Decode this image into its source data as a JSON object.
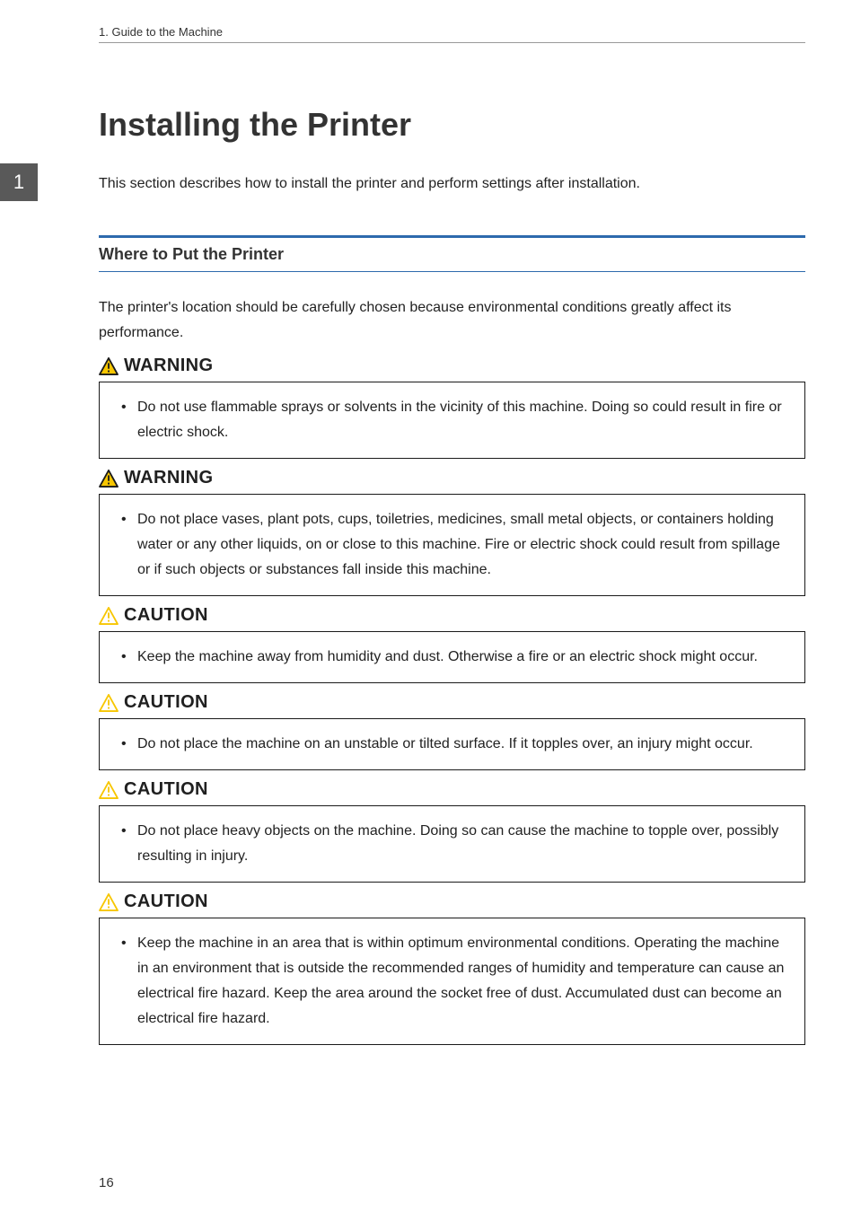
{
  "runningHeader": "1. Guide to the Machine",
  "sideTab": "1",
  "pageTitle": "Installing the Printer",
  "introText": "This section describes how to install the printer and perform settings after installation.",
  "sectionHeading": "Where to Put the Printer",
  "sectionText": "The printer's location should be carefully chosen because environmental conditions greatly affect its performance.",
  "alerts": [
    {
      "level": "WARNING",
      "levelColor": "#202020",
      "iconStroke": "#1a1a1a",
      "iconFill": "#f7c600",
      "text": "Do not use flammable sprays or solvents in the vicinity of this machine. Doing so could result in fire or electric shock."
    },
    {
      "level": "WARNING",
      "levelColor": "#202020",
      "iconStroke": "#1a1a1a",
      "iconFill": "#f7c600",
      "text": "Do not place vases, plant pots, cups, toiletries, medicines, small metal objects, or containers holding water or any other liquids, on or close to this machine. Fire or electric shock could result from spillage or if such objects or substances fall inside this machine."
    },
    {
      "level": "CAUTION",
      "levelColor": "#202020",
      "iconStroke": "#f7c600",
      "iconFill": "#ffffff",
      "text": "Keep the machine away from humidity and dust. Otherwise a fire or an electric shock might occur."
    },
    {
      "level": "CAUTION",
      "levelColor": "#202020",
      "iconStroke": "#f7c600",
      "iconFill": "#ffffff",
      "text": "Do not place the machine on an unstable or tilted surface. If it topples over, an injury might occur."
    },
    {
      "level": "CAUTION",
      "levelColor": "#202020",
      "iconStroke": "#f7c600",
      "iconFill": "#ffffff",
      "text": "Do not place heavy objects on the machine. Doing so can cause the machine to topple over, possibly resulting in injury."
    },
    {
      "level": "CAUTION",
      "levelColor": "#202020",
      "iconStroke": "#f7c600",
      "iconFill": "#ffffff",
      "text": "Keep the machine in an area that is within optimum environmental conditions. Operating the machine in an environment that is outside the recommended ranges of humidity and temperature can cause an electrical fire hazard. Keep the area around the socket free of dust. Accumulated dust can become an electrical fire hazard."
    }
  ],
  "pageNumber": "16",
  "colors": {
    "headingRule": "#2d6aad",
    "sideTabBg": "#595959",
    "bodyText": "#222222",
    "border": "#1a1a1a"
  },
  "fonts": {
    "titleSize": 36,
    "sectionHeadSize": 18,
    "bodySize": 16,
    "alertLabelSize": 20
  }
}
